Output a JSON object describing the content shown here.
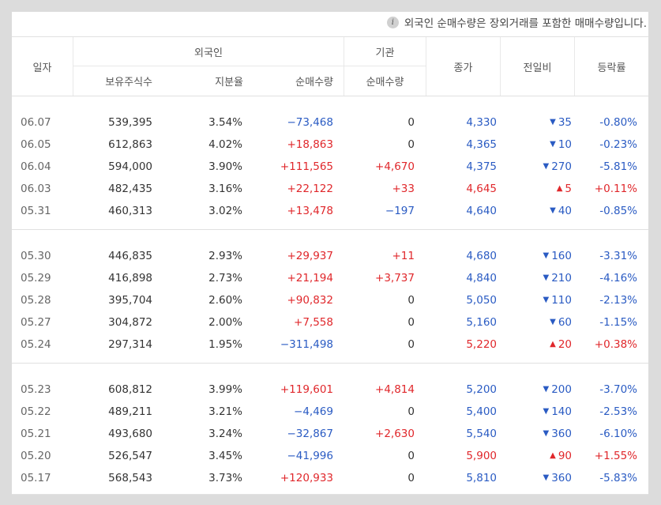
{
  "notice": {
    "icon": "info-icon",
    "text": "외국인 순매수량은 장외거래를 포함한 매매수량입니다."
  },
  "colors": {
    "up": "#e0272b",
    "down": "#2a5bc3",
    "neutral": "#333333"
  },
  "header": {
    "date": "일자",
    "foreign": "외국인",
    "foreign_holdings": "보유주식수",
    "foreign_ratio": "지분율",
    "foreign_net": "순매수량",
    "institution": "기관",
    "institution_net": "순매수량",
    "close": "종가",
    "change": "전일비",
    "rate": "등락률"
  },
  "groups": [
    {
      "rows": [
        {
          "date": "06.07",
          "holdings": "539,395",
          "ratio": "3.54%",
          "foreign_net": "−73,468",
          "inst_net": "0",
          "close": "4,330",
          "dir": "down",
          "change": "35",
          "rate": "-0.80%"
        },
        {
          "date": "06.05",
          "holdings": "612,863",
          "ratio": "4.02%",
          "foreign_net": "+18,863",
          "inst_net": "0",
          "close": "4,365",
          "dir": "down",
          "change": "10",
          "rate": "-0.23%"
        },
        {
          "date": "06.04",
          "holdings": "594,000",
          "ratio": "3.90%",
          "foreign_net": "+111,565",
          "inst_net": "+4,670",
          "close": "4,375",
          "dir": "down",
          "change": "270",
          "rate": "-5.81%"
        },
        {
          "date": "06.03",
          "holdings": "482,435",
          "ratio": "3.16%",
          "foreign_net": "+22,122",
          "inst_net": "+33",
          "close": "4,645",
          "dir": "up",
          "change": "5",
          "rate": "+0.11%"
        },
        {
          "date": "05.31",
          "holdings": "460,313",
          "ratio": "3.02%",
          "foreign_net": "+13,478",
          "inst_net": "−197",
          "close": "4,640",
          "dir": "down",
          "change": "40",
          "rate": "-0.85%"
        }
      ]
    },
    {
      "rows": [
        {
          "date": "05.30",
          "holdings": "446,835",
          "ratio": "2.93%",
          "foreign_net": "+29,937",
          "inst_net": "+11",
          "close": "4,680",
          "dir": "down",
          "change": "160",
          "rate": "-3.31%"
        },
        {
          "date": "05.29",
          "holdings": "416,898",
          "ratio": "2.73%",
          "foreign_net": "+21,194",
          "inst_net": "+3,737",
          "close": "4,840",
          "dir": "down",
          "change": "210",
          "rate": "-4.16%"
        },
        {
          "date": "05.28",
          "holdings": "395,704",
          "ratio": "2.60%",
          "foreign_net": "+90,832",
          "inst_net": "0",
          "close": "5,050",
          "dir": "down",
          "change": "110",
          "rate": "-2.13%"
        },
        {
          "date": "05.27",
          "holdings": "304,872",
          "ratio": "2.00%",
          "foreign_net": "+7,558",
          "inst_net": "0",
          "close": "5,160",
          "dir": "down",
          "change": "60",
          "rate": "-1.15%"
        },
        {
          "date": "05.24",
          "holdings": "297,314",
          "ratio": "1.95%",
          "foreign_net": "−311,498",
          "inst_net": "0",
          "close": "5,220",
          "dir": "up",
          "change": "20",
          "rate": "+0.38%"
        }
      ]
    },
    {
      "rows": [
        {
          "date": "05.23",
          "holdings": "608,812",
          "ratio": "3.99%",
          "foreign_net": "+119,601",
          "inst_net": "+4,814",
          "close": "5,200",
          "dir": "down",
          "change": "200",
          "rate": "-3.70%"
        },
        {
          "date": "05.22",
          "holdings": "489,211",
          "ratio": "3.21%",
          "foreign_net": "−4,469",
          "inst_net": "0",
          "close": "5,400",
          "dir": "down",
          "change": "140",
          "rate": "-2.53%"
        },
        {
          "date": "05.21",
          "holdings": "493,680",
          "ratio": "3.24%",
          "foreign_net": "−32,867",
          "inst_net": "+2,630",
          "close": "5,540",
          "dir": "down",
          "change": "360",
          "rate": "-6.10%"
        },
        {
          "date": "05.20",
          "holdings": "526,547",
          "ratio": "3.45%",
          "foreign_net": "−41,996",
          "inst_net": "0",
          "close": "5,900",
          "dir": "up",
          "change": "90",
          "rate": "+1.55%"
        },
        {
          "date": "05.17",
          "holdings": "568,543",
          "ratio": "3.73%",
          "foreign_net": "+120,933",
          "inst_net": "0",
          "close": "5,810",
          "dir": "down",
          "change": "360",
          "rate": "-5.83%"
        }
      ]
    }
  ]
}
